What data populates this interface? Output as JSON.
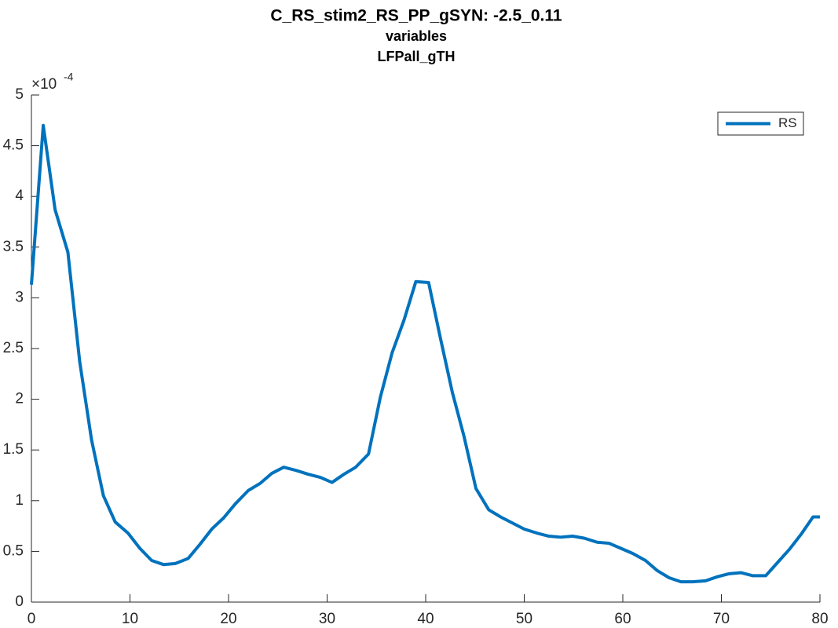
{
  "chart_data": {
    "type": "line",
    "title": "C_RS_stim2_RS_PP_gSYN: -2.5_0.11",
    "subtitle": "variables",
    "subtitle2": "LFPall_gTH",
    "y_exponent": {
      "base": "×10",
      "power": "-4"
    },
    "x": [
      0,
      1.2,
      2.4,
      3.7,
      4.9,
      6.1,
      7.3,
      8.5,
      9.8,
      11,
      12.2,
      13.4,
      14.6,
      15.9,
      17.1,
      18.3,
      19.5,
      20.7,
      22,
      23.2,
      24.4,
      25.6,
      26.8,
      28.1,
      29.3,
      30.5,
      31.7,
      32.9,
      34.2,
      35.4,
      36.6,
      37.8,
      39,
      40.3,
      41.5,
      42.7,
      43.9,
      45.1,
      46.4,
      47.6,
      48.8,
      50,
      51.3,
      52.5,
      53.7,
      54.9,
      56.1,
      57.4,
      58.6,
      59.8,
      61,
      62.3,
      63.5,
      64.7,
      65.9,
      67.1,
      68.4,
      69.6,
      70.8,
      72,
      73.2,
      74.5,
      75.7,
      76.9,
      78.1,
      79.3,
      80
    ],
    "series": [
      {
        "name": "RS",
        "color": "#0072bd",
        "values": [
          3.13,
          4.7,
          3.87,
          3.45,
          2.37,
          1.6,
          1.05,
          0.79,
          0.68,
          0.53,
          0.41,
          0.37,
          0.38,
          0.43,
          0.57,
          0.72,
          0.83,
          0.97,
          1.1,
          1.17,
          1.27,
          1.33,
          1.3,
          1.26,
          1.23,
          1.18,
          1.26,
          1.33,
          1.46,
          2.02,
          2.46,
          2.78,
          3.16,
          3.15,
          2.6,
          2.07,
          1.63,
          1.12,
          0.91,
          0.84,
          0.78,
          0.72,
          0.68,
          0.65,
          0.64,
          0.65,
          0.63,
          0.59,
          0.58,
          0.53,
          0.48,
          0.41,
          0.31,
          0.24,
          0.2,
          0.2,
          0.21,
          0.25,
          0.28,
          0.29,
          0.26,
          0.26,
          0.39,
          0.52,
          0.67,
          0.84,
          0.84
        ]
      }
    ],
    "xlim": [
      0,
      80
    ],
    "xticks": [
      0,
      10,
      20,
      30,
      40,
      50,
      60,
      70,
      80
    ],
    "ylim": [
      0,
      5
    ],
    "yticks": [
      0,
      0.5,
      1,
      1.5,
      2,
      2.5,
      3,
      3.5,
      4,
      4.5,
      5
    ],
    "legend_position": "top-right",
    "grid": false
  }
}
